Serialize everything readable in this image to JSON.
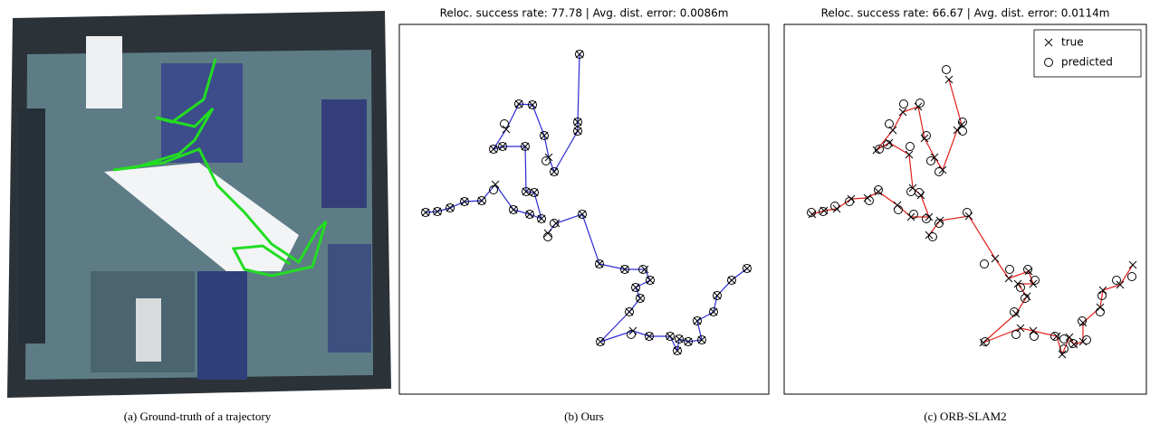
{
  "captions": [
    "(a) Ground-truth of a trajectory",
    "(b) Ours",
    "(c) ORB-SLAM2"
  ],
  "chart_data": [
    {
      "type": "scatter",
      "title": "Reloc. success rate: 77.78 | Avg. dist. error: 0.0086m",
      "color": "#2a2ad4",
      "xlim": [
        0,
        408
      ],
      "ylim": [
        0,
        409
      ],
      "legend": false,
      "series": [
        {
          "marker": "x",
          "x": [
            29,
            42,
            56,
            72,
            91,
            106,
            126,
            144,
            157,
            149,
            140,
            139,
            114,
            104,
            118,
            132,
            147,
            160,
            165,
            171,
            197,
            197,
            199,
            null,
            164,
            173,
            202,
            221,
            249,
            271,
            277,
            261,
            266,
            254,
            222,
            258,
            276,
            299,
            307,
            309,
            319,
            334,
            329,
            347,
            351,
            367,
            384
          ],
          "values": [
            201,
            202,
            206,
            213,
            214,
            232,
            204,
            199,
            194,
            223,
            224,
            274,
            274,
            271,
            293,
            321,
            320,
            286,
            262,
            246,
            291,
            301,
            376,
            null,
            178,
            189,
            199,
            144,
            138,
            138,
            126,
            118,
            106,
            91,
            58,
            70,
            64,
            64,
            48,
            61,
            58,
            60,
            81,
            91,
            109,
            126,
            139
          ]
        },
        {
          "marker": "o",
          "x": [
            29,
            42,
            56,
            72,
            91,
            104,
            126,
            144,
            157,
            149,
            140,
            139,
            114,
            104,
            116,
            132,
            147,
            160,
            162,
            171,
            197,
            197,
            199,
            null,
            164,
            171,
            202,
            221,
            249,
            269,
            277,
            261,
            266,
            254,
            222,
            256,
            276,
            299,
            307,
            309,
            319,
            334,
            329,
            347,
            351,
            367,
            384
          ],
          "values": [
            201,
            202,
            206,
            213,
            214,
            226,
            204,
            199,
            194,
            223,
            224,
            274,
            274,
            271,
            299,
            321,
            320,
            286,
            258,
            246,
            291,
            301,
            376,
            null,
            174,
            189,
            199,
            144,
            138,
            138,
            126,
            118,
            106,
            91,
            58,
            66,
            64,
            64,
            48,
            61,
            58,
            60,
            81,
            91,
            109,
            126,
            139
          ]
        }
      ]
    },
    {
      "type": "scatter",
      "title": "Reloc. success rate: 66.67 | Avg. dist. error: 0.0114m",
      "color": "#e3201c",
      "xlim": [
        0,
        400
      ],
      "ylim": [
        0,
        409
      ],
      "legend": "upper right",
      "series": [
        {
          "name": "true",
          "marker": "x",
          "x": [
            31,
            44,
            58,
            74,
            92,
            104,
            125,
            140,
            160,
            151,
            142,
            138,
            116,
            102,
            120,
            131,
            148,
            155,
            166,
            175,
            191,
            196,
            182,
            null,
            160,
            172,
            204,
            233,
            248,
            270,
            275,
            258,
            268,
            256,
            220,
            261,
            275,
            301,
            307,
            315,
            320,
            330,
            330,
            349,
            352,
            371,
            385
          ],
          "values": [
            199,
            203,
            205,
            216,
            217,
            224,
            209,
            196,
            196,
            220,
            228,
            265,
            278,
            270,
            292,
            312,
            318,
            283,
            262,
            248,
            292,
            298,
            348,
            null,
            176,
            192,
            197,
            150,
            128,
            136,
            122,
            122,
            108,
            89,
            57,
            73,
            70,
            64,
            44,
            63,
            55,
            58,
            79,
            96,
            115,
            121,
            143
          ]
        },
        {
          "name": "predicted",
          "marker": "o",
          "x": [
            30,
            43,
            56,
            72,
            94,
            104,
            126,
            143,
            157,
            149,
            140,
            139,
            114,
            105,
            116,
            132,
            150,
            157,
            162,
            171,
            197,
            197,
            179,
            null,
            164,
            171,
            202,
            221,
            249,
            269,
            277,
            261,
            266,
            254,
            222,
            256,
            276,
            299,
            309,
            309,
            319,
            334,
            329,
            349,
            351,
            367,
            384
          ],
          "values": [
            201,
            202,
            208,
            213,
            214,
            226,
            204,
            199,
            194,
            223,
            224,
            274,
            276,
            271,
            299,
            321,
            322,
            286,
            258,
            246,
            291,
            301,
            359,
            null,
            174,
            189,
            201,
            144,
            138,
            138,
            126,
            118,
            106,
            91,
            58,
            66,
            64,
            64,
            50,
            61,
            56,
            60,
            81,
            91,
            109,
            126,
            130
          ]
        }
      ]
    }
  ]
}
